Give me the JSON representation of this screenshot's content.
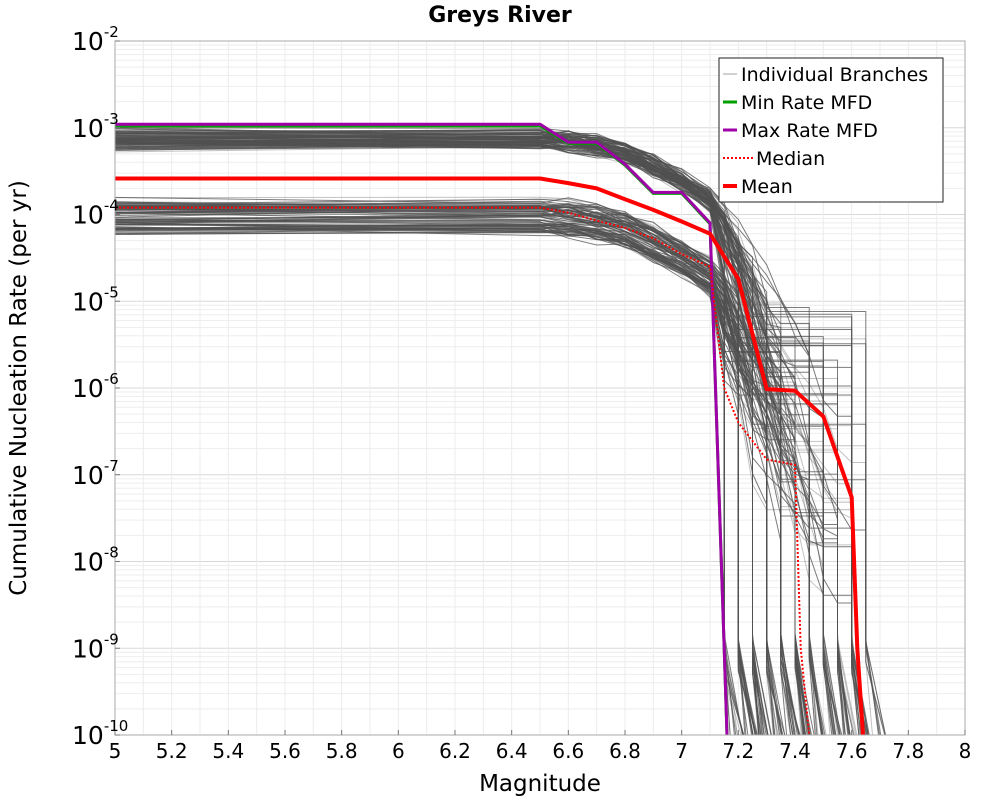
{
  "chart_data": {
    "type": "line",
    "title": "Greys River",
    "xlabel": "Magnitude",
    "ylabel": "Cumulative Nucleation Rate (per yr)",
    "xlim": [
      5,
      8
    ],
    "ylim": [
      1e-10,
      0.01
    ],
    "yscale": "log",
    "grid": true,
    "legend_position": "top-right",
    "x_ticks": [
      "5",
      "5.2",
      "5.4",
      "5.6",
      "5.8",
      "6",
      "6.2",
      "6.4",
      "6.6",
      "6.8",
      "7",
      "7.2",
      "7.4",
      "7.6",
      "7.8",
      "8"
    ],
    "y_ticks": [
      {
        "base": "10",
        "exp": "-10",
        "value": 1e-10
      },
      {
        "base": "10",
        "exp": "-9",
        "value": 1e-09
      },
      {
        "base": "10",
        "exp": "-8",
        "value": 1e-08
      },
      {
        "base": "10",
        "exp": "-7",
        "value": 1e-07
      },
      {
        "base": "10",
        "exp": "-6",
        "value": 1e-06
      },
      {
        "base": "10",
        "exp": "-5",
        "value": 1e-05
      },
      {
        "base": "10",
        "exp": "-4",
        "value": 0.0001
      },
      {
        "base": "10",
        "exp": "-3",
        "value": 0.001
      },
      {
        "base": "10",
        "exp": "-2",
        "value": 0.01
      }
    ],
    "series": [
      {
        "name": "Max Rate MFD",
        "color": "#a000a8",
        "style": "solid",
        "x": [
          5,
          6.5,
          6.6,
          6.7,
          6.8,
          6.9,
          7.0,
          7.1,
          7.15,
          7.16
        ],
        "y": [
          0.0011,
          0.0011,
          0.00068,
          0.00068,
          0.00038,
          0.00018,
          0.00018,
          8e-05,
          1e-09,
          1e-10
        ]
      },
      {
        "name": "Min Rate MFD",
        "color": "#00a000",
        "style": "solid",
        "x": [
          5,
          6.5,
          6.6,
          6.7,
          6.8,
          6.9,
          7.0,
          7.1,
          7.15,
          7.16
        ],
        "y": [
          0.00105,
          0.00105,
          0.00066,
          0.00066,
          0.00037,
          0.000175,
          0.000175,
          7.8e-05,
          1e-09,
          1e-10
        ]
      },
      {
        "name": "Median",
        "color": "#ff0000",
        "style": "dotted",
        "x": [
          5,
          6.5,
          6.6,
          6.7,
          6.8,
          6.9,
          7.0,
          7.1,
          7.15,
          7.2,
          7.3,
          7.35,
          7.4,
          7.42,
          7.45
        ],
        "y": [
          0.00012,
          0.00012,
          0.000105,
          8.5e-05,
          7e-05,
          5.3e-05,
          3.5e-05,
          2.5e-05,
          1e-06,
          4e-07,
          1.5e-07,
          1.4e-07,
          1.3e-07,
          1e-09,
          1e-10
        ]
      },
      {
        "name": "Mean",
        "color": "#ff0000",
        "style": "solid",
        "x": [
          5,
          6.5,
          6.6,
          6.7,
          6.8,
          6.9,
          7.0,
          7.1,
          7.2,
          7.3,
          7.4,
          7.5,
          7.6,
          7.62,
          7.64
        ],
        "y": [
          0.00026,
          0.00026,
          0.00023,
          0.0002,
          0.00015,
          0.000113,
          8.3e-05,
          6e-05,
          1.8e-05,
          9.7e-07,
          9.3e-07,
          4.7e-07,
          5.5e-08,
          1e-09,
          1e-10
        ]
      }
    ],
    "branches": {
      "name": "Individual Branches",
      "color": "#505050",
      "count": 180,
      "description_groups": [
        {
          "plateau_range": [
            0.0006,
            0.0009
          ]
        },
        {
          "plateau_range": [
            6e-05,
            0.00016
          ]
        }
      ],
      "x_shape": [
        5,
        6.5,
        6.6,
        6.7,
        6.8,
        6.9,
        7.0,
        7.1,
        7.2,
        7.3,
        7.4,
        7.5,
        7.6
      ],
      "drop_magnitudes": [
        7.15,
        7.2,
        7.25,
        7.3,
        7.35,
        7.4,
        7.45,
        7.5,
        7.55,
        7.6,
        7.65
      ]
    },
    "legend": [
      {
        "label": "Individual Branches",
        "color": "#a0a0a0",
        "style": "thin"
      },
      {
        "label": "Min Rate MFD",
        "color": "#00a000",
        "style": "solid"
      },
      {
        "label": "Max Rate MFD",
        "color": "#a000a8",
        "style": "solid"
      },
      {
        "label": "Median",
        "color": "#ff0000",
        "style": "dotted"
      },
      {
        "label": "Mean",
        "color": "#ff0000",
        "style": "thick"
      }
    ]
  }
}
